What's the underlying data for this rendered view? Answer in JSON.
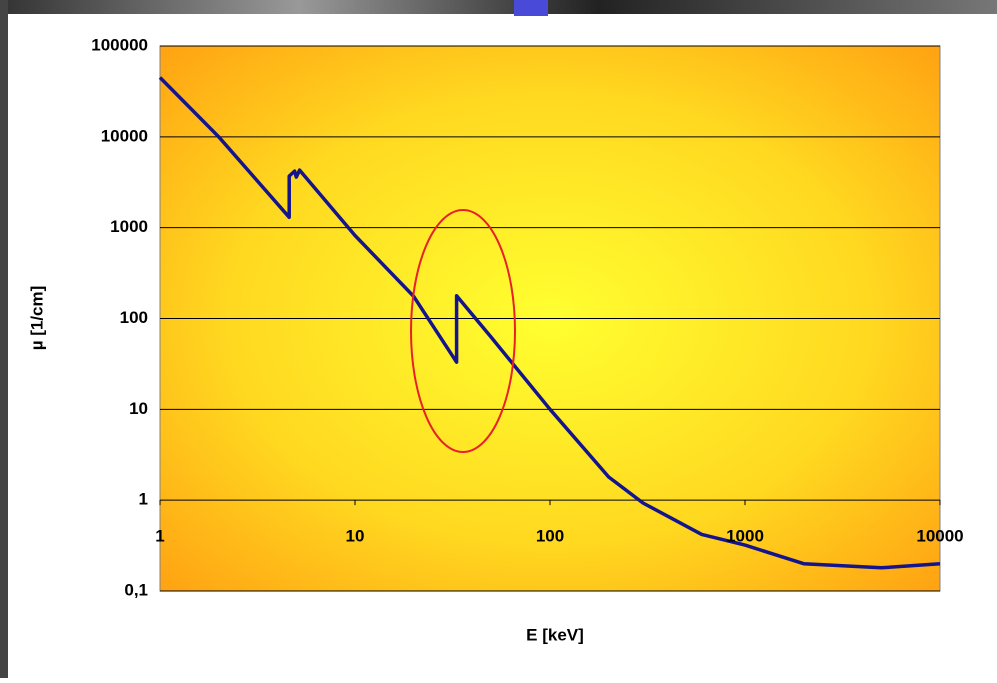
{
  "chart_data": {
    "type": "line",
    "x_label": "E [keV]",
    "y_label": "µ [1/cm]",
    "x": [
      1,
      2,
      4.6,
      4.6,
      4.9,
      5.0,
      5.2,
      10,
      20,
      33.2,
      33.2,
      50,
      100,
      200,
      300,
      600,
      1000,
      2000,
      5000,
      10000
    ],
    "series": [
      {
        "color": "#14148c",
        "values": [
          45000,
          10000,
          1300,
          3700,
          4200,
          3600,
          4300,
          820,
          175,
          33,
          178,
          62,
          10,
          1.8,
          0.93,
          0.42,
          0.32,
          0.2,
          0.18,
          0.2
        ]
      }
    ],
    "x_log": true,
    "y_log": true,
    "grid": true,
    "xlim": [
      1,
      10000
    ],
    "xticks": [
      1,
      10,
      100,
      1000,
      10000
    ],
    "ylim": [
      0.1,
      100000
    ],
    "yticks": [
      {
        "value": 0.1,
        "label": "0,1"
      },
      1,
      10,
      100,
      1000,
      10000,
      100000
    ]
  }
}
